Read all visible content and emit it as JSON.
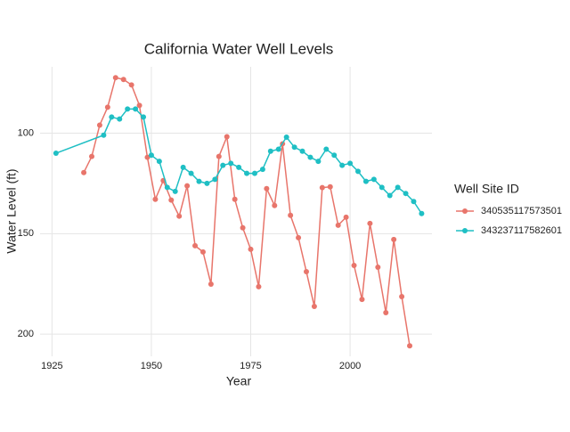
{
  "chart_data": {
    "type": "line",
    "title": "California Water Well Levels",
    "x_label": "Year",
    "y_label": "Water Level (ft)",
    "legend_title": "Well Site ID",
    "legend_position": "right",
    "grid": true,
    "y_reversed": true,
    "xlim": [
      1922,
      2020.6
    ],
    "xticks": [
      1925,
      1950,
      1975,
      2000
    ],
    "ylim": [
      67,
      211
    ],
    "yticks": [
      100,
      150,
      200
    ],
    "series": [
      {
        "name": "340535117573501",
        "color": "#e8756b",
        "x": [
          1933,
          1935,
          1937,
          1939,
          1941,
          1943,
          1945,
          1947,
          1949,
          1951,
          1953,
          1955,
          1957,
          1959,
          1961,
          1963,
          1965,
          1967,
          1969,
          1971,
          1973,
          1975,
          1977,
          1979,
          1981,
          1983,
          1985,
          1987,
          1989,
          1991,
          1993,
          1995,
          1997,
          1999,
          2001,
          2003,
          2005,
          2007,
          2009,
          2011,
          2013,
          2015
        ],
        "values": [
          119.6,
          111.6,
          96,
          87.1,
          72.4,
          73.3,
          76,
          86.2,
          112,
          132.9,
          123.6,
          133.3,
          141.3,
          126.2,
          156,
          159.1,
          175.1,
          111.6,
          101.8,
          132.9,
          147.1,
          157.8,
          176.4,
          127.6,
          136,
          105.3,
          140.9,
          152,
          168.9,
          186.2,
          127.1,
          126.7,
          145.8,
          141.8,
          165.8,
          182.7,
          144.9,
          166.7,
          189.3,
          152.9,
          181.3,
          205.8
        ]
      },
      {
        "name": "343237117582601",
        "color": "#1fbfc4",
        "x": [
          1926,
          1938,
          1940,
          1942,
          1944,
          1946,
          1948,
          1950,
          1952,
          1954,
          1956,
          1958,
          1960,
          1962,
          1964,
          1966,
          1968,
          1970,
          1972,
          1974,
          1976,
          1978,
          1980,
          1982,
          1984,
          1986,
          1988,
          1990,
          1992,
          1994,
          1996,
          1998,
          2000,
          2002,
          2004,
          2006,
          2008,
          2010,
          2012,
          2014,
          2016,
          2018
        ],
        "values": [
          110,
          101,
          92,
          93,
          88,
          88,
          92,
          111,
          114,
          127,
          129,
          117,
          120,
          124,
          125,
          123,
          116,
          115,
          117,
          120,
          120,
          118,
          109,
          108,
          102,
          107,
          109,
          112,
          114,
          108,
          111,
          116,
          115,
          119,
          124,
          123,
          127,
          131,
          127,
          130,
          134,
          140
        ]
      }
    ]
  }
}
